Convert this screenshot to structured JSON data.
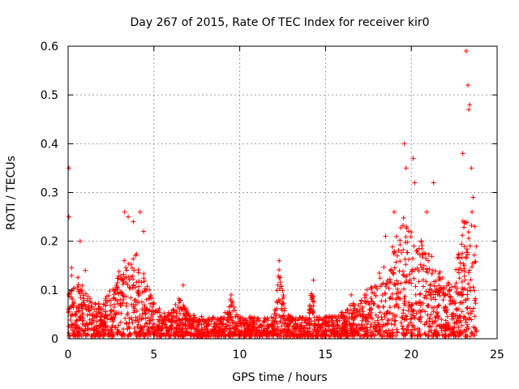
{
  "chart_data": {
    "type": "scatter",
    "title": "Day 267 of 2015, Rate Of TEC Index for receiver kir0",
    "xlabel": "GPS time / hours",
    "ylabel": "ROTI / TECUs",
    "xlim": [
      0,
      25
    ],
    "ylim": [
      0,
      0.6
    ],
    "xticks": [
      0,
      5,
      10,
      15,
      20,
      25
    ],
    "yticks": [
      0,
      0.1,
      0.2,
      0.3,
      0.4,
      0.5,
      0.6
    ],
    "grid": true,
    "marker": "+",
    "color": "#ff0000",
    "series": [
      {
        "name": "ROTI",
        "envelope": [
          [
            0.0,
            0.17
          ],
          [
            0.5,
            0.13
          ],
          [
            1.0,
            0.09
          ],
          [
            1.5,
            0.07
          ],
          [
            2.0,
            0.07
          ],
          [
            2.5,
            0.1
          ],
          [
            3.0,
            0.14
          ],
          [
            3.5,
            0.17
          ],
          [
            4.0,
            0.17
          ],
          [
            4.5,
            0.12
          ],
          [
            5.0,
            0.07
          ],
          [
            5.5,
            0.05
          ],
          [
            6.0,
            0.05
          ],
          [
            6.5,
            0.08
          ],
          [
            7.0,
            0.05
          ],
          [
            8.0,
            0.04
          ],
          [
            9.0,
            0.04
          ],
          [
            9.5,
            0.08
          ],
          [
            10.0,
            0.04
          ],
          [
            11.0,
            0.04
          ],
          [
            12.0,
            0.04
          ],
          [
            12.3,
            0.14
          ],
          [
            12.7,
            0.05
          ],
          [
            13.0,
            0.04
          ],
          [
            14.0,
            0.04
          ],
          [
            14.2,
            0.11
          ],
          [
            14.5,
            0.04
          ],
          [
            15.0,
            0.04
          ],
          [
            16.0,
            0.05
          ],
          [
            16.5,
            0.07
          ],
          [
            17.0,
            0.07
          ],
          [
            17.5,
            0.1
          ],
          [
            18.0,
            0.12
          ],
          [
            18.5,
            0.16
          ],
          [
            19.0,
            0.19
          ],
          [
            19.5,
            0.25
          ],
          [
            20.0,
            0.22
          ],
          [
            20.5,
            0.2
          ],
          [
            21.0,
            0.18
          ],
          [
            21.5,
            0.14
          ],
          [
            22.0,
            0.12
          ],
          [
            22.5,
            0.12
          ],
          [
            23.0,
            0.24
          ],
          [
            23.5,
            0.28
          ],
          [
            23.8,
            0.2
          ]
        ],
        "peaks": [
          [
            0.05,
            0.35
          ],
          [
            0.05,
            0.25
          ],
          [
            0.7,
            0.2
          ],
          [
            1.0,
            0.14
          ],
          [
            3.3,
            0.26
          ],
          [
            3.5,
            0.25
          ],
          [
            3.8,
            0.24
          ],
          [
            4.2,
            0.26
          ],
          [
            4.4,
            0.22
          ],
          [
            6.7,
            0.11
          ],
          [
            9.5,
            0.09
          ],
          [
            12.3,
            0.16
          ],
          [
            14.3,
            0.12
          ],
          [
            16.5,
            0.09
          ],
          [
            18.5,
            0.21
          ],
          [
            19.0,
            0.26
          ],
          [
            19.6,
            0.4
          ],
          [
            19.7,
            0.35
          ],
          [
            20.1,
            0.37
          ],
          [
            20.2,
            0.32
          ],
          [
            20.9,
            0.26
          ],
          [
            21.3,
            0.32
          ],
          [
            23.0,
            0.38
          ],
          [
            23.2,
            0.59
          ],
          [
            23.3,
            0.52
          ],
          [
            23.35,
            0.47
          ],
          [
            23.4,
            0.48
          ],
          [
            23.5,
            0.35
          ],
          [
            23.6,
            0.29
          ],
          [
            23.7,
            0.23
          ]
        ]
      }
    ]
  }
}
